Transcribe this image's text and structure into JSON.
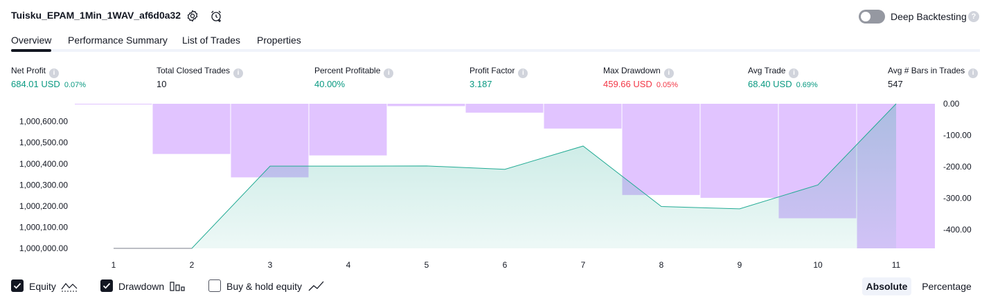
{
  "header": {
    "title": "Tuisku_EPAM_1Min_1WAV_af6d0a32",
    "deep_backtesting_label": "Deep Backtesting",
    "deep_backtesting_on": false,
    "help_glyph": "?"
  },
  "tabs": [
    {
      "label": "Overview",
      "active": true
    },
    {
      "label": "Performance Summary",
      "active": false
    },
    {
      "label": "List of Trades",
      "active": false
    },
    {
      "label": "Properties",
      "active": false
    }
  ],
  "stats": {
    "info_glyph": "i",
    "net_profit": {
      "label": "Net Profit",
      "value": "684.01 USD",
      "sub": "0.07%"
    },
    "total_closed_trades": {
      "label": "Total Closed Trades",
      "value": "10"
    },
    "percent_profitable": {
      "label": "Percent Profitable",
      "value": "40.00%"
    },
    "profit_factor": {
      "label": "Profit Factor",
      "value": "3.187"
    },
    "max_drawdown": {
      "label": "Max Drawdown",
      "value": "459.66 USD",
      "sub": "0.05%"
    },
    "avg_trade": {
      "label": "Avg Trade",
      "value": "68.40 USD",
      "sub": "0.69%"
    },
    "avg_bars": {
      "label": "Avg # Bars in Trades",
      "value": "547"
    }
  },
  "chart_data": {
    "type": "line",
    "x": [
      1,
      2,
      3,
      4,
      5,
      6,
      7,
      8,
      9,
      10,
      11
    ],
    "x_tick_labels": [
      "1",
      "2",
      "3",
      "4",
      "5",
      "6",
      "7",
      "8",
      "9",
      "10",
      "11"
    ],
    "left_axis": {
      "ticks": [
        1000000,
        1000100,
        1000200,
        1000300,
        1000400,
        1000500,
        1000600
      ],
      "tick_labels": [
        "1,000,000.00",
        "1,000,100.00",
        "1,000,200.00",
        "1,000,300.00",
        "1,000,400.00",
        "1,000,500.00",
        "1,000,600.00"
      ],
      "ylim": [
        1000000,
        1000684
      ]
    },
    "right_axis": {
      "ticks": [
        0,
        -100,
        -200,
        -300,
        -400
      ],
      "tick_labels": [
        "0.00",
        "-100.00",
        "-200.00",
        "-300.00",
        "-400.00"
      ],
      "ylim": [
        -459.66,
        0
      ]
    },
    "series": [
      {
        "name": "Equity",
        "axis": "left",
        "kind": "area",
        "color": "#22ab94",
        "values": [
          1000000,
          1000000,
          1000389,
          1000389,
          1000390,
          1000374,
          1000484,
          1000198,
          1000187,
          1000300,
          1000684
        ]
      },
      {
        "name": "Drawdown",
        "axis": "right",
        "kind": "bar",
        "color": "#e1c4ff",
        "values": [
          -1.5,
          -159.6,
          -234,
          -164.2,
          -7.5,
          -28.2,
          -78.8,
          -290,
          -299,
          -364,
          -459.66
        ]
      }
    ],
    "grid": false,
    "legend_placement": "bottom-left"
  },
  "legend": [
    {
      "label": "Equity",
      "checked": true
    },
    {
      "label": "Drawdown",
      "checked": true
    },
    {
      "label": "Buy & hold equity",
      "checked": false
    }
  ],
  "mode_buttons": {
    "absolute": "Absolute",
    "percentage": "Percentage",
    "selected": "absolute"
  },
  "colors": {
    "profit": "#089981",
    "loss": "#f23645",
    "equity_line": "#22ab94",
    "drawdown_bar": "#e1c4ff",
    "text": "#131722"
  }
}
